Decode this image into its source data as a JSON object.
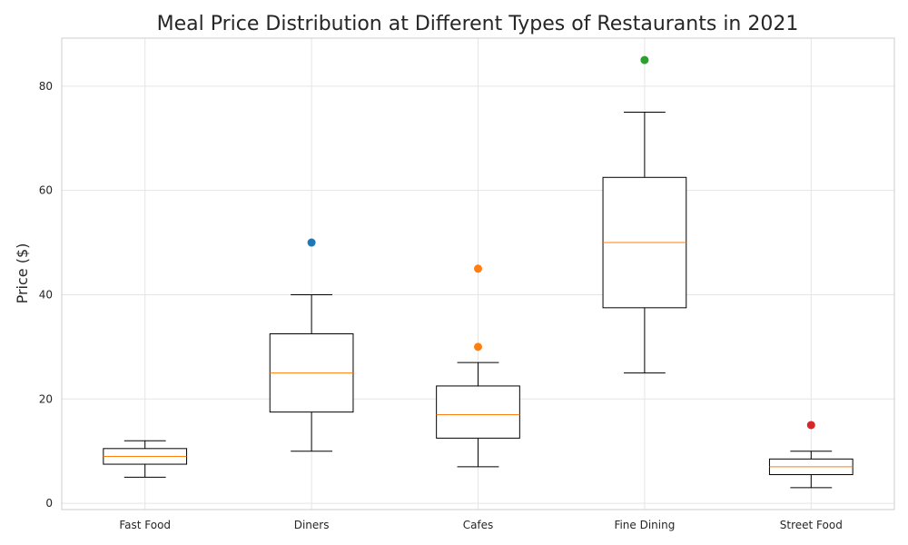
{
  "chart_data": {
    "type": "box",
    "title": "Meal Price Distribution at Different Types of Restaurants in 2021",
    "xlabel": "",
    "ylabel": "Price ($)",
    "ylim": [
      -1.2,
      89.2
    ],
    "yticks": [
      0,
      20,
      40,
      60,
      80
    ],
    "grid": true,
    "categories": [
      "Fast Food",
      "Diners",
      "Cafes",
      "Fine Dining",
      "Street Food"
    ],
    "boxes": [
      {
        "category": "Fast Food",
        "whisker_low": 5,
        "q1": 7.5,
        "median": 9,
        "q3": 10.5,
        "whisker_high": 12
      },
      {
        "category": "Diners",
        "whisker_low": 10,
        "q1": 17.5,
        "median": 25,
        "q3": 32.5,
        "whisker_high": 40
      },
      {
        "category": "Cafes",
        "whisker_low": 7,
        "q1": 12.5,
        "median": 17,
        "q3": 22.5,
        "whisker_high": 27
      },
      {
        "category": "Fine Dining",
        "whisker_low": 25,
        "q1": 37.5,
        "median": 50,
        "q3": 62.5,
        "whisker_high": 75
      },
      {
        "category": "Street Food",
        "whisker_low": 3,
        "q1": 5.5,
        "median": 7,
        "q3": 8.5,
        "whisker_high": 10
      }
    ],
    "outliers": [
      {
        "category": "Diners",
        "value": 50,
        "color": "#1f77b4"
      },
      {
        "category": "Cafes",
        "value": 45,
        "color": "#ff7f0e"
      },
      {
        "category": "Cafes",
        "value": 30,
        "color": "#ff7f0e"
      },
      {
        "category": "Fine Dining",
        "value": 85,
        "color": "#2ca02c"
      },
      {
        "category": "Street Food",
        "value": 15,
        "color": "#d62728"
      }
    ],
    "colors": {
      "box": "#000000",
      "median": "#ff7f0e",
      "grid": "#e5e5e5",
      "spine": "#cccccc",
      "text": "#262626"
    }
  }
}
